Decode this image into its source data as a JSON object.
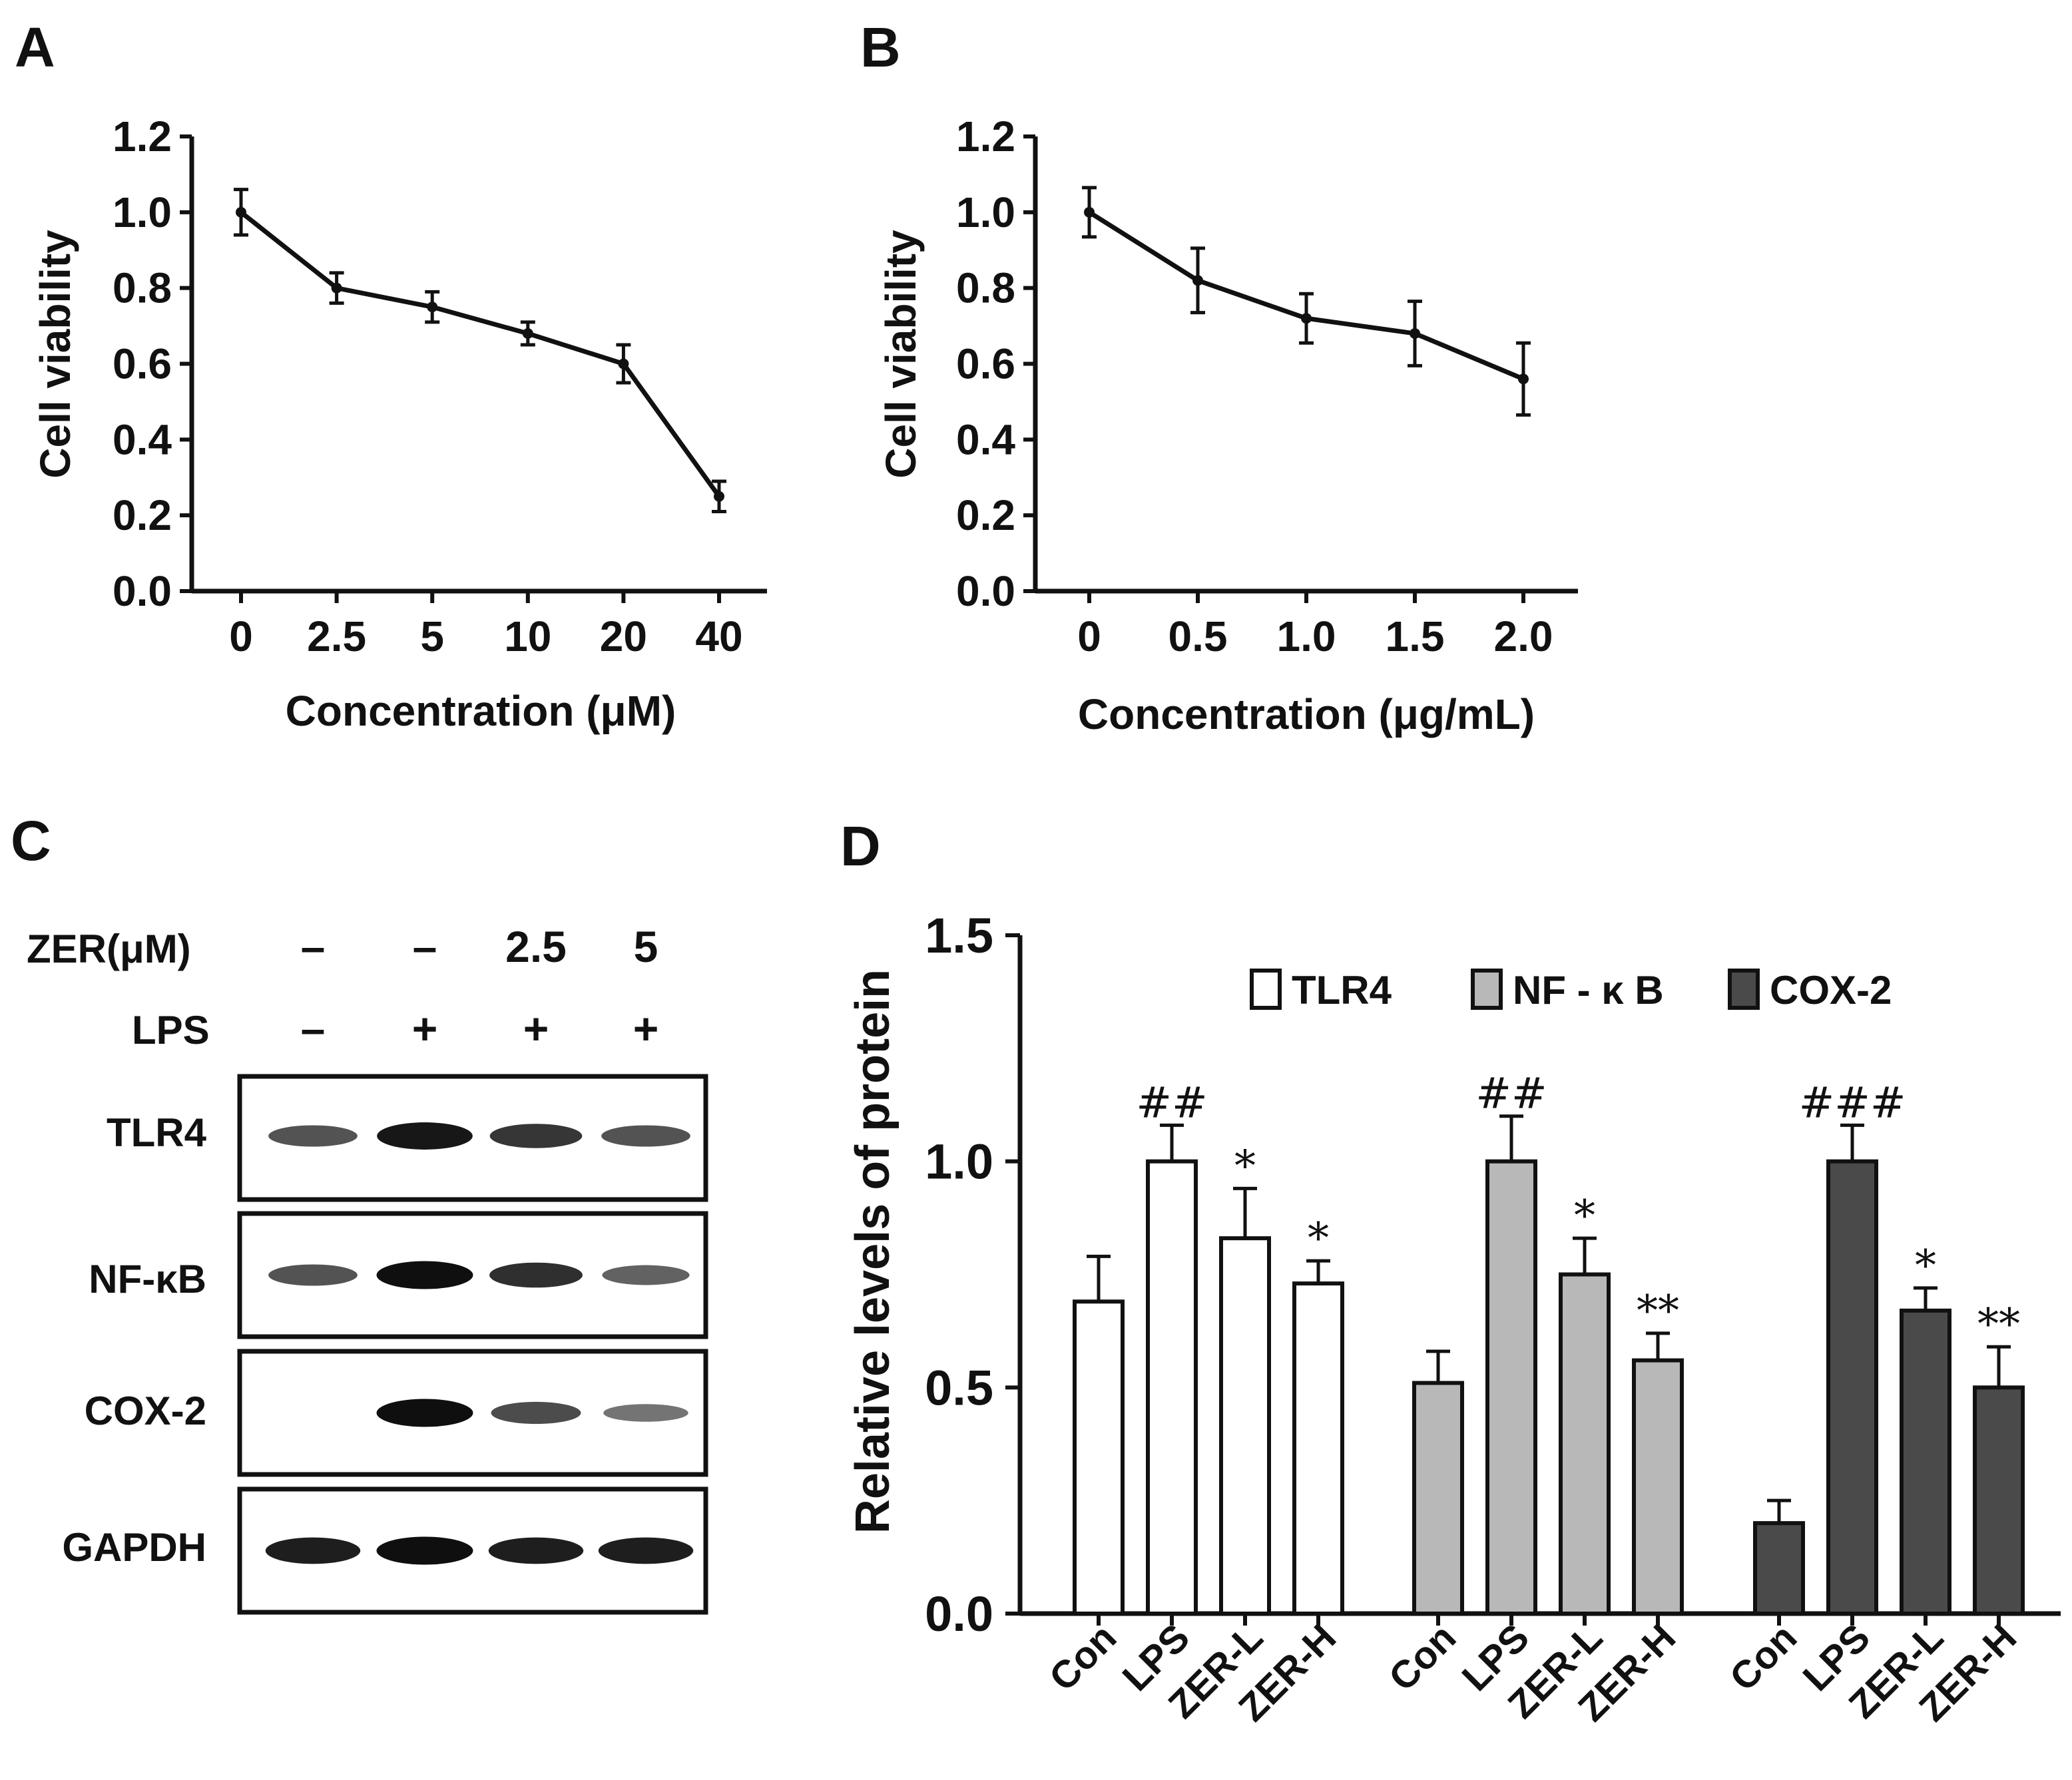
{
  "chart_data": [
    {
      "panel": "A",
      "type": "line",
      "categories": [
        "0",
        "2.5",
        "5",
        "10",
        "20",
        "40"
      ],
      "values": [
        1.0,
        0.8,
        0.75,
        0.68,
        0.6,
        0.25
      ],
      "errors": [
        0.06,
        0.04,
        0.04,
        0.03,
        0.05,
        0.04
      ],
      "xlabel": "Concentration (μM)",
      "ylabel": "Cell viability",
      "ylim": [
        0,
        1.2
      ],
      "yticks": [
        "0.0",
        "0.2",
        "0.4",
        "0.6",
        "0.8",
        "1.0",
        "1.2"
      ]
    },
    {
      "panel": "B",
      "type": "line",
      "categories": [
        "0",
        "0.5",
        "1.0",
        "1.5",
        "2.0"
      ],
      "values": [
        1.0,
        0.82,
        0.72,
        0.68,
        0.56
      ],
      "errors": [
        0.065,
        0.085,
        0.065,
        0.085,
        0.095
      ],
      "xlabel": "Concentration (μg/mL)",
      "ylabel": "Cell viability",
      "ylim": [
        0,
        1.2
      ],
      "yticks": [
        "0.0",
        "0.2",
        "0.4",
        "0.6",
        "0.8",
        "1.0",
        "1.2"
      ]
    },
    {
      "panel": "D",
      "type": "bar",
      "categories": [
        "Con",
        "LPS",
        "ZER-L",
        "ZER-H"
      ],
      "series": [
        {
          "name": "TLR4",
          "color": "#ffffff",
          "values": [
            0.69,
            1.0,
            0.83,
            0.73
          ],
          "errors": [
            0.1,
            0.08,
            0.11,
            0.05
          ],
          "marks": [
            "",
            "##",
            "*",
            "*"
          ]
        },
        {
          "name": "NF - κ B",
          "color": "#b8b8b8",
          "values": [
            0.51,
            1.0,
            0.75,
            0.56
          ],
          "errors": [
            0.07,
            0.1,
            0.08,
            0.06
          ],
          "marks": [
            "",
            "##",
            "*",
            "**"
          ]
        },
        {
          "name": "COX-2",
          "color": "#4a4a4a",
          "values": [
            0.2,
            1.0,
            0.67,
            0.5
          ],
          "errors": [
            0.05,
            0.08,
            0.05,
            0.09
          ],
          "marks": [
            "",
            "###",
            "*",
            "**"
          ]
        }
      ],
      "ylabel": "Relative levels of protein",
      "ylim": [
        0,
        1.5
      ],
      "yticks": [
        "0.0",
        "0.5",
        "1.0",
        "1.5"
      ],
      "legend_position": "top-right"
    }
  ],
  "panels": {
    "a": "A",
    "b": "B",
    "c": "C",
    "d": "D"
  },
  "western_blot": {
    "treatment_rows": [
      {
        "label": "ZER(μM)",
        "values": [
          "–",
          "–",
          "2.5",
          "5"
        ]
      },
      {
        "label": "LPS",
        "values": [
          "–",
          "+",
          "+",
          "+"
        ]
      }
    ],
    "bands": [
      "TLR4",
      "NF-κB",
      "COX-2",
      "GAPDH"
    ],
    "band_intensities": [
      [
        0.55,
        0.95,
        0.75,
        0.55
      ],
      [
        0.55,
        1.0,
        0.8,
        0.45
      ],
      [
        0.0,
        1.0,
        0.6,
        0.3
      ],
      [
        0.9,
        1.0,
        0.9,
        0.9
      ]
    ]
  }
}
